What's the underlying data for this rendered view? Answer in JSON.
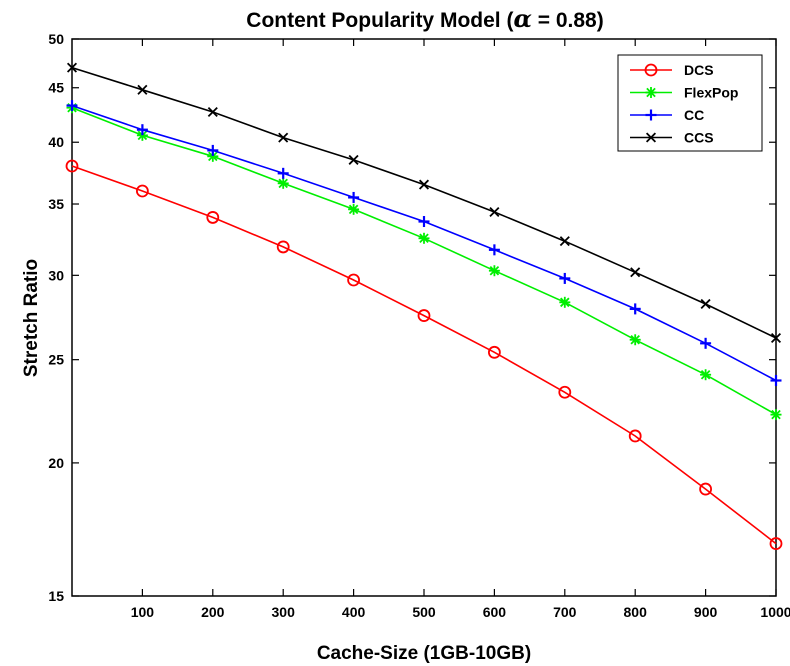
{
  "chart_data": {
    "type": "line",
    "title_prefix": "Content Popularity Model (",
    "title_symbol": "α",
    "title_suffix": " = 0.88)",
    "xlabel": "Cache-Size (1GB-10GB)",
    "ylabel": "Stretch Ratio",
    "y_scale": "log",
    "xlim": [
      0,
      1000
    ],
    "ylim": [
      15,
      50
    ],
    "x_ticks": [
      100,
      200,
      300,
      400,
      500,
      600,
      700,
      800,
      900,
      1000
    ],
    "y_ticks": [
      15,
      20,
      25,
      30,
      35,
      40,
      45,
      50
    ],
    "grid": false,
    "legend_position": "top-right",
    "x": [
      0,
      100,
      200,
      300,
      400,
      500,
      600,
      700,
      800,
      900,
      1000
    ],
    "series": [
      {
        "name": "DCS",
        "color": "#ff0000",
        "marker": "circle",
        "values": [
          38.0,
          36.0,
          34.0,
          31.9,
          29.7,
          27.5,
          25.4,
          23.3,
          21.2,
          18.9,
          16.8
        ]
      },
      {
        "name": "FlexPop",
        "color": "#00ee00",
        "marker": "asterisk",
        "values": [
          43.1,
          40.6,
          38.8,
          36.6,
          34.6,
          32.5,
          30.3,
          28.3,
          26.1,
          24.2,
          22.2
        ]
      },
      {
        "name": "CC",
        "color": "#0000ff",
        "marker": "plus",
        "values": [
          43.3,
          41.1,
          39.3,
          37.4,
          35.5,
          33.7,
          31.7,
          29.8,
          27.9,
          25.9,
          23.9
        ]
      },
      {
        "name": "CCS",
        "color": "#000000",
        "marker": "cross",
        "values": [
          47.0,
          44.8,
          42.7,
          40.4,
          38.5,
          36.5,
          34.4,
          32.3,
          30.2,
          28.2,
          26.2
        ]
      }
    ]
  }
}
